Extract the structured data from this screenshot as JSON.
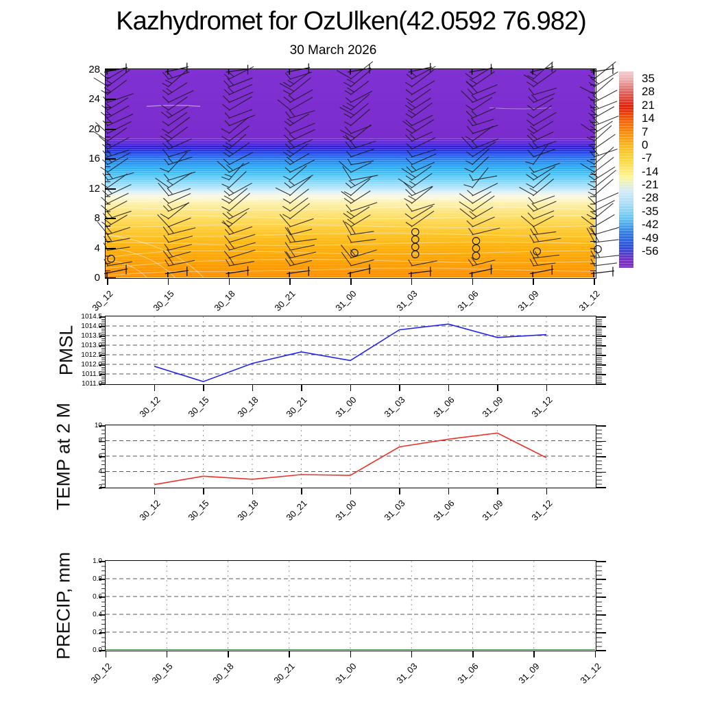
{
  "title": "Kazhydromet for OzUlken(42.0592 76.982)",
  "subtitle": "30 March 2026",
  "time_labels": [
    "30_12",
    "30_15",
    "30_18",
    "30_21",
    "31_00",
    "31_03",
    "31_06",
    "31_09",
    "31_12"
  ],
  "chart_data": [
    {
      "type": "heatmap",
      "name": "wind-temperature-cross-section",
      "x": [
        "30_12",
        "30_15",
        "30_18",
        "30_21",
        "31_00",
        "31_03",
        "31_06",
        "31_09",
        "31_12"
      ],
      "ylim": [
        0,
        28
      ],
      "yticks": [
        "0",
        "4",
        "8",
        "12",
        "16",
        "20",
        "24",
        "28"
      ],
      "grid": false,
      "legend_position": "right-colorbar",
      "colorbar_labels": [
        "35",
        "28",
        "21",
        "14",
        "7",
        "0",
        "-7",
        "-14",
        "-21",
        "-28",
        "-35",
        "-42",
        "-49",
        "-56"
      ],
      "colorbar_colors": [
        "#f0b2b6",
        "#e4625c",
        "#ea1c04",
        "#fd5f00",
        "#ff9204",
        "#ffc01a",
        "#ffdc3e",
        "#fff68e",
        "#d4ecfa",
        "#a6dcf9",
        "#5ec7f5",
        "#2c7fe9",
        "#2850e2",
        "#7c2cc8"
      ],
      "fill_profile_stops": [
        {
          "pct_from_top": 0,
          "color": "#8031d2"
        },
        {
          "pct_from_top": 33,
          "color": "#7b2ccd"
        },
        {
          "pct_from_top": 35,
          "color": "#5f28d8"
        },
        {
          "pct_from_top": 37.5,
          "color": "#2e1cd6"
        },
        {
          "pct_from_top": 40,
          "color": "#2342e8"
        },
        {
          "pct_from_top": 43,
          "color": "#2b7af0"
        },
        {
          "pct_from_top": 47,
          "color": "#2aa8f2"
        },
        {
          "pct_from_top": 50,
          "color": "#44c0f6"
        },
        {
          "pct_from_top": 54,
          "color": "#82d7fa"
        },
        {
          "pct_from_top": 57,
          "color": "#b4e5fa"
        },
        {
          "pct_from_top": 59,
          "color": "#dff1f7"
        },
        {
          "pct_from_top": 61,
          "color": "#fbf9e6"
        },
        {
          "pct_from_top": 64,
          "color": "#fdf2b2"
        },
        {
          "pct_from_top": 68,
          "color": "#fde784"
        },
        {
          "pct_from_top": 73,
          "color": "#ffd952"
        },
        {
          "pct_from_top": 79,
          "color": "#ffc524"
        },
        {
          "pct_from_top": 86,
          "color": "#ffb108"
        },
        {
          "pct_from_top": 94,
          "color": "#ff9e00"
        },
        {
          "pct_from_top": 100,
          "color": "#ff9000"
        }
      ],
      "wind_barb_columns": [
        "30_12",
        "30_15",
        "30_18",
        "30_21",
        "31_00",
        "31_03",
        "31_06",
        "31_09",
        "31_12"
      ],
      "calm_circles": [
        {
          "time": "30_12",
          "heights_km": [
            2.5
          ]
        },
        {
          "time": "31_00",
          "heights_km": [
            3.3
          ]
        },
        {
          "time": "31_03",
          "heights_km": [
            3.1,
            4.1,
            5.1,
            6.1
          ]
        },
        {
          "time": "31_06",
          "heights_km": [
            2.9,
            3.9,
            4.9
          ]
        },
        {
          "time": "31_09",
          "heights_km": [
            3.5
          ]
        },
        {
          "time": "31_12",
          "heights_km": [
            3.8
          ]
        }
      ]
    },
    {
      "type": "line",
      "name": "pmsl",
      "ylabel": "PMSL",
      "x": [
        "30_12",
        "30_15",
        "30_18",
        "30_21",
        "31_00",
        "31_03",
        "31_06",
        "31_09",
        "31_12"
      ],
      "values": [
        1011.9,
        1011.1,
        1012.05,
        1012.65,
        1012.2,
        1013.8,
        1014.1,
        1013.4,
        1013.55
      ],
      "ylim": [
        1011.0,
        1014.5
      ],
      "yticks": [
        "1011.0",
        "1011.5",
        "1012.0",
        "1012.5",
        "1013.0",
        "1013.5",
        "1014.0",
        "1014.5"
      ],
      "minor_step": 0.1,
      "grid": true,
      "line_color": "#2222ee"
    },
    {
      "type": "line",
      "name": "temp2m",
      "ylabel": "TEMP at 2 M",
      "x": [
        "30_12",
        "30_15",
        "30_18",
        "30_21",
        "31_00",
        "31_03",
        "31_06",
        "31_09",
        "31_12"
      ],
      "values": [
        2.3,
        3.4,
        3.0,
        3.6,
        3.5,
        7.2,
        8.2,
        9.0,
        5.8
      ],
      "ylim": [
        2,
        10
      ],
      "yticks": [
        "2",
        "4",
        "6",
        "8",
        "10"
      ],
      "minor_step": 0.5,
      "grid": true,
      "line_color": "#f03028"
    },
    {
      "type": "line",
      "name": "precip",
      "ylabel": "PRECIP, mm",
      "x": [
        "30_12",
        "30_15",
        "30_18",
        "30_21",
        "31_00",
        "31_03",
        "31_06",
        "31_09",
        "31_12"
      ],
      "values": [
        0.0,
        0.0,
        0.0,
        0.0,
        0.0,
        0.0,
        0.0,
        0.0,
        0.0
      ],
      "ylim": [
        0.0,
        1.0
      ],
      "yticks": [
        "0.0",
        "0.2",
        "0.4",
        "0.6",
        "0.8",
        "1.0"
      ],
      "minor_step": 0.05,
      "grid": true,
      "line_color": "#005c00"
    }
  ]
}
